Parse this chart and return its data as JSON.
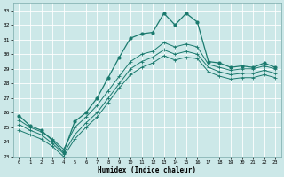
{
  "bg_color": "#cce8e8",
  "grid_color": "#aacccc",
  "line_color": "#1a7a6e",
  "xlabel": "Humidex (Indice chaleur)",
  "xlim": [
    -0.5,
    23.5
  ],
  "ylim": [
    23,
    33.5
  ],
  "yticks": [
    23,
    24,
    25,
    26,
    27,
    28,
    29,
    30,
    31,
    32,
    33
  ],
  "xticks": [
    0,
    1,
    2,
    3,
    4,
    5,
    6,
    7,
    8,
    9,
    10,
    11,
    12,
    13,
    14,
    15,
    16,
    17,
    18,
    19,
    20,
    21,
    22,
    23
  ],
  "line_main_x": [
    0,
    1,
    2,
    3,
    4,
    5,
    6,
    7,
    8,
    9,
    10,
    11,
    12,
    13,
    14,
    15,
    16,
    17,
    18,
    19,
    20,
    21,
    22,
    23
  ],
  "line_main_y": [
    25.8,
    25.1,
    24.8,
    24.1,
    23.3,
    25.4,
    26.0,
    27.0,
    28.4,
    29.8,
    31.1,
    31.4,
    31.5,
    32.8,
    32.0,
    32.8,
    32.2,
    29.5,
    29.4,
    29.1,
    29.2,
    29.1,
    29.4,
    29.1
  ],
  "line2_x": [
    0,
    1,
    2,
    3,
    4,
    5,
    6,
    7,
    8,
    9,
    10,
    11,
    12,
    13,
    14,
    15,
    16,
    17,
    18,
    19,
    20,
    21,
    22,
    23
  ],
  "line2_y": [
    25.5,
    25.0,
    24.7,
    24.2,
    23.5,
    25.0,
    25.7,
    26.5,
    27.5,
    28.5,
    29.5,
    30.0,
    30.2,
    30.8,
    30.5,
    30.7,
    30.5,
    29.3,
    29.1,
    28.9,
    29.0,
    29.0,
    29.2,
    29.0
  ],
  "line3_x": [
    0,
    1,
    2,
    3,
    4,
    5,
    6,
    7,
    8,
    9,
    10,
    11,
    12,
    13,
    14,
    15,
    16,
    17,
    18,
    19,
    20,
    21,
    22,
    23
  ],
  "line3_y": [
    25.2,
    24.8,
    24.5,
    23.9,
    23.2,
    24.5,
    25.3,
    26.0,
    27.0,
    28.0,
    29.0,
    29.5,
    29.8,
    30.3,
    30.0,
    30.2,
    30.0,
    29.1,
    28.8,
    28.6,
    28.7,
    28.7,
    28.9,
    28.7
  ],
  "line4_x": [
    0,
    1,
    2,
    3,
    4,
    5,
    6,
    7,
    8,
    9,
    10,
    11,
    12,
    13,
    14,
    15,
    16,
    17,
    18,
    19,
    20,
    21,
    22,
    23
  ],
  "line4_y": [
    24.8,
    24.5,
    24.2,
    23.7,
    23.0,
    24.2,
    25.0,
    25.7,
    26.7,
    27.7,
    28.6,
    29.1,
    29.4,
    29.9,
    29.6,
    29.8,
    29.7,
    28.8,
    28.5,
    28.3,
    28.4,
    28.4,
    28.6,
    28.4
  ]
}
